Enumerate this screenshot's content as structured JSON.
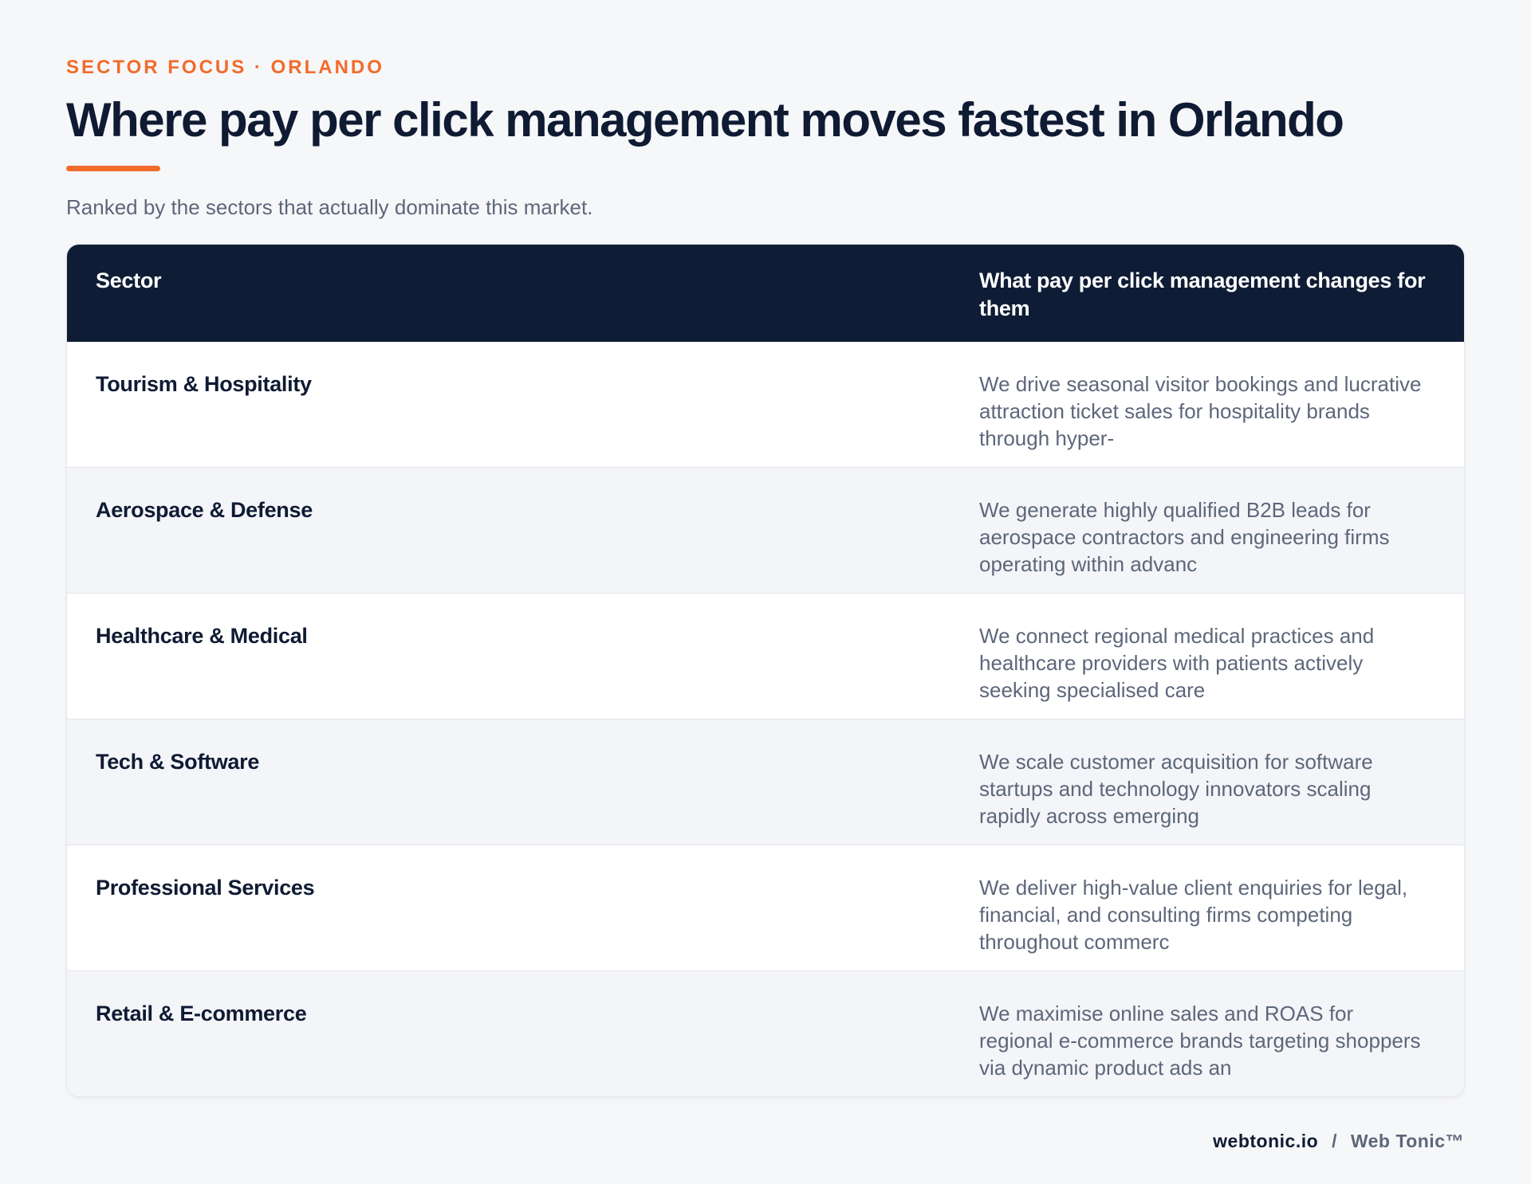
{
  "eyebrow": "SECTOR FOCUS · ORLANDO",
  "title": "Where pay per click management moves fastest in Orlando",
  "subtitle": "Ranked by the sectors that actually dominate this market.",
  "table": {
    "headers": {
      "sector": "Sector",
      "impact": "What pay per click management changes for them"
    },
    "rows": [
      {
        "sector": "Tourism & Hospitality",
        "impact": "We drive seasonal visitor bookings and lucrative attraction ticket sales for hospitality brands through hyper-"
      },
      {
        "sector": "Aerospace & Defense",
        "impact": "We generate highly qualified B2B leads for aerospace contractors and engineering firms operating within advanc"
      },
      {
        "sector": "Healthcare & Medical",
        "impact": "We connect regional medical practices and healthcare providers with patients actively seeking specialised care"
      },
      {
        "sector": "Tech & Software",
        "impact": "We scale customer acquisition for software startups and technology innovators scaling rapidly across emerging"
      },
      {
        "sector": "Professional Services",
        "impact": "We deliver high-value client enquiries for legal, financial, and consulting firms competing throughout commerc"
      },
      {
        "sector": "Retail & E-commerce",
        "impact": "We maximise online sales and ROAS for regional e-commerce brands targeting shoppers via dynamic product ads an"
      }
    ]
  },
  "footer": {
    "domain": "webtonic.io",
    "separator": "/",
    "brand": "Web Tonic™"
  },
  "colors": {
    "accent": "#f26b2b",
    "header_bg": "#0e1c35",
    "text_dark": "#0f1b33",
    "text_muted": "#5d677a",
    "page_bg": "#f6f7f9"
  }
}
